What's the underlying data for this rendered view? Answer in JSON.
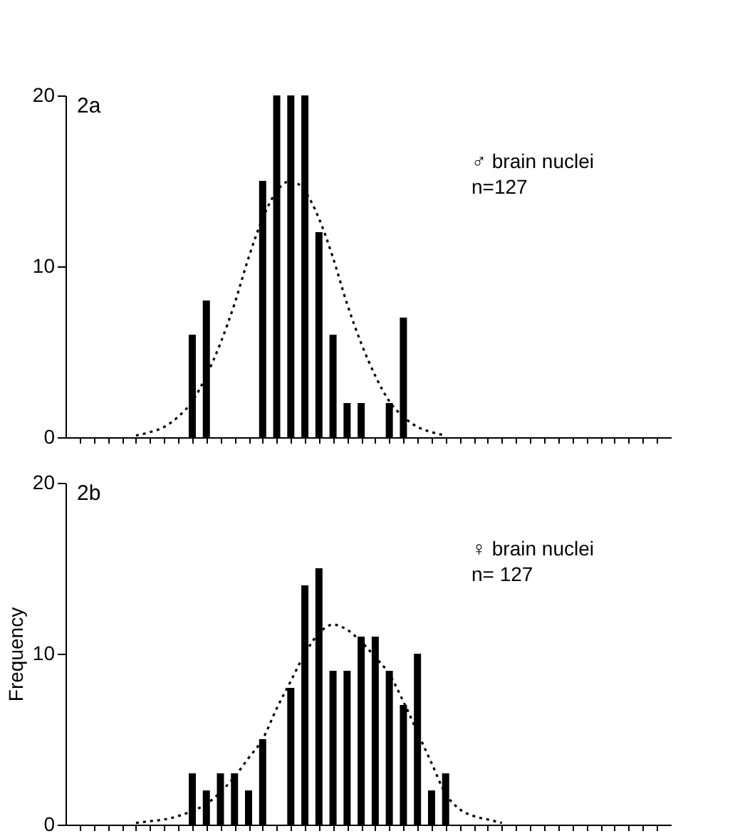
{
  "chart_data": [
    {
      "type": "bar",
      "title": "2a",
      "categories": [
        null,
        null,
        null,
        null,
        null,
        null,
        null,
        null,
        null,
        null,
        null,
        null,
        null,
        null,
        null,
        null,
        null,
        null,
        null,
        null,
        null,
        null,
        null,
        null,
        null,
        null,
        null,
        null,
        null,
        null,
        null,
        null,
        null,
        null,
        null,
        null,
        null,
        null,
        null,
        null,
        null,
        null
      ],
      "series": [
        {
          "color": "#000000",
          "values": [
            null,
            null,
            null,
            null,
            null,
            null,
            null,
            null,
            6,
            8,
            null,
            null,
            null,
            15,
            20,
            20,
            20,
            12,
            6,
            2,
            2,
            null,
            2,
            7,
            null,
            null,
            null,
            null,
            null,
            null,
            null,
            null,
            null,
            null,
            null,
            null,
            null,
            null,
            null,
            null,
            null,
            null
          ]
        },
        {
          "type": "line",
          "color": "#000000",
          "line_style": "dotted",
          "values": [
            null,
            null,
            null,
            null,
            0.1,
            0.3,
            0.6,
            1.2,
            2.1,
            3.6,
            5.5,
            7.8,
            10.5,
            12.8,
            14.4,
            15,
            14.4,
            12.8,
            10.5,
            7.8,
            5.5,
            3.6,
            2.1,
            1.2,
            0.6,
            0.3,
            0.1,
            null,
            null,
            null,
            null,
            null,
            null,
            null,
            null,
            null,
            null,
            null,
            null,
            null,
            null,
            null
          ]
        }
      ],
      "annotations": [
        "♂ brain nuclei",
        "n=127"
      ],
      "ylim": [
        0,
        20
      ],
      "yticks": [
        0,
        10,
        20
      ],
      "grid": false,
      "tick_labels": "y"
    },
    {
      "type": "bar",
      "title": "2b",
      "ylabel": "Frequency",
      "categories": [
        null,
        null,
        null,
        null,
        null,
        null,
        null,
        null,
        null,
        null,
        null,
        null,
        null,
        null,
        null,
        null,
        null,
        null,
        null,
        null,
        null,
        null,
        null,
        null,
        null,
        null,
        null,
        null,
        null,
        null,
        null,
        null,
        null,
        null,
        null,
        null,
        null,
        null,
        null,
        null,
        null,
        null
      ],
      "series": [
        {
          "color": "#000000",
          "values": [
            null,
            null,
            null,
            null,
            null,
            null,
            null,
            null,
            3,
            2,
            3,
            3,
            2,
            5,
            null,
            8,
            14,
            15,
            9,
            9,
            11,
            11,
            9,
            7,
            10,
            2,
            3,
            null,
            null,
            null,
            null,
            null,
            null,
            null,
            null,
            null,
            null,
            null,
            null,
            null,
            null,
            null
          ]
        },
        {
          "type": "line",
          "color": "#000000",
          "line_style": "dotted",
          "values": [
            null,
            null,
            null,
            null,
            0.1,
            0.2,
            0.3,
            0.5,
            0.8,
            1.2,
            1.9,
            2.8,
            3.9,
            5.0,
            6.8,
            8.4,
            10.0,
            11.2,
            11.7,
            11.4,
            10.7,
            9.8,
            8.8,
            7.2,
            5.4,
            3.6,
            1.8,
            0.9,
            0.5,
            0.3,
            0.1,
            null,
            null,
            null,
            null,
            null,
            null,
            null,
            null,
            null,
            null,
            null
          ]
        }
      ],
      "annotations": [
        "♀ brain nuclei",
        "n= 127"
      ],
      "ylim": [
        0,
        20
      ],
      "yticks": [
        0,
        10,
        20
      ],
      "grid": false,
      "tick_labels": "y"
    }
  ]
}
